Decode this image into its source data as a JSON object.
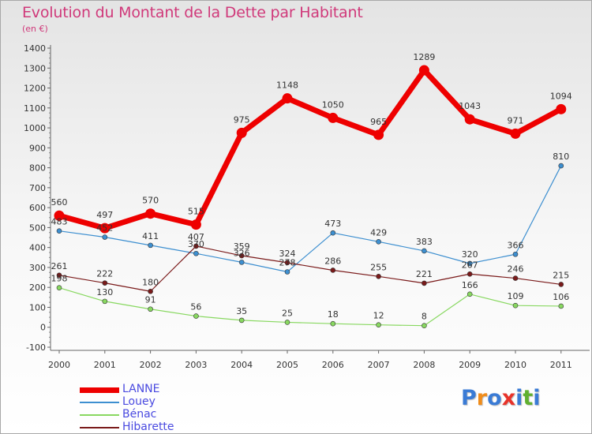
{
  "header": {
    "title": "Evolution du Montant de la Dette par Habitant",
    "subtitle": "(en €)"
  },
  "chart_data": {
    "type": "line",
    "title": "Evolution du Montant de la Dette par Habitant",
    "subtitle": "(en €)",
    "xlabel": "",
    "ylabel": "",
    "ylim": [
      -100,
      1400
    ],
    "yticks": [
      -100,
      0,
      100,
      200,
      300,
      400,
      500,
      600,
      700,
      800,
      900,
      1000,
      1100,
      1200,
      1300,
      1400
    ],
    "grid": false,
    "legend_position": "bottom-left",
    "categories": [
      "2000",
      "2001",
      "2002",
      "2003",
      "2004",
      "2005",
      "2006",
      "2007",
      "2008",
      "2009",
      "2010",
      "2011"
    ],
    "series": [
      {
        "name": "LANNE",
        "color": "#ee0000",
        "values": [
          560,
          497,
          570,
          515,
          975,
          1148,
          1050,
          965,
          1289,
          1043,
          971,
          1094
        ],
        "labels": [
          "560",
          "497",
          "570",
          "515",
          "975",
          "1148",
          "1050",
          "965",
          "1289",
          "1043",
          "971",
          "1094"
        ]
      },
      {
        "name": "Louey",
        "color": "#3d8fd0",
        "values": [
          483,
          452,
          411,
          370,
          326,
          278,
          473,
          429,
          383,
          320,
          366,
          810
        ],
        "labels": [
          "483",
          "452",
          "411",
          "370",
          "326",
          "278",
          "473",
          "429",
          "383",
          "320",
          "366",
          "810"
        ]
      },
      {
        "name": "Bénac",
        "color": "#88d860",
        "values": [
          198,
          130,
          91,
          56,
          35,
          25,
          18,
          12,
          8,
          166,
          109,
          106
        ],
        "labels": [
          "198",
          "130",
          "91",
          "56",
          "35",
          "25",
          "18",
          "12",
          "8",
          "166",
          "109",
          "106"
        ]
      },
      {
        "name": "Hibarette",
        "color": "#7a1a1a",
        "values": [
          261,
          222,
          180,
          407,
          359,
          324,
          286,
          255,
          221,
          267,
          246,
          215
        ],
        "labels": [
          "261",
          "222",
          "180",
          "407",
          "359",
          "324",
          "286",
          "255",
          "221",
          "267",
          "246",
          "215"
        ]
      }
    ]
  },
  "logo": {
    "text": "Proxiti",
    "colors": [
      "#3a7bd5",
      "#f08c1a",
      "#3a7bd5",
      "#e8332a",
      "#3a7bd5",
      "#60b030",
      "#3a7bd5"
    ]
  }
}
